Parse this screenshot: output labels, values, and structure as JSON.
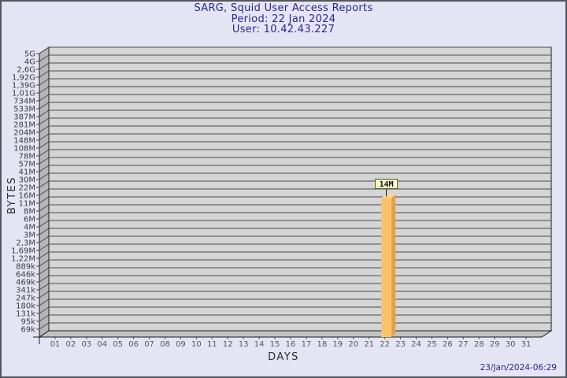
{
  "chart_data": {
    "type": "bar",
    "title": "SARG, Squid User Access Reports",
    "subtitle_period": "Period: 22 Jan 2024",
    "subtitle_user": "User: 10.42.43.227",
    "xlabel": "DAYS",
    "ylabel": "BYTES",
    "footer_timestamp": "23/Jan/2024-06:29",
    "y_axis": {
      "scale": "log",
      "tick_labels": [
        "5G",
        "4G",
        "2,6G",
        "1,92G",
        "1,39G",
        "1,01G",
        "734M",
        "533M",
        "387M",
        "281M",
        "204M",
        "148M",
        "108M",
        "78M",
        "57M",
        "41M",
        "30M",
        "22M",
        "16M",
        "11M",
        "8M",
        "6M",
        "4M",
        "3M",
        "2,3M",
        "1,69M",
        "1,22M",
        "889k",
        "646k",
        "469k",
        "341k",
        "247k",
        "180k",
        "131k",
        "95k",
        "69k"
      ]
    },
    "x_axis": {
      "tick_labels": [
        "01",
        "02",
        "03",
        "04",
        "05",
        "06",
        "07",
        "08",
        "09",
        "10",
        "11",
        "12",
        "13",
        "14",
        "15",
        "16",
        "17",
        "18",
        "19",
        "20",
        "21",
        "22",
        "23",
        "24",
        "25",
        "26",
        "27",
        "28",
        "29",
        "30",
        "31"
      ]
    },
    "bars": [
      {
        "day": "22",
        "label": "14M",
        "value": 14000000
      }
    ],
    "colors": {
      "page_bg": "#E4E4F4",
      "page_border": "#55555C",
      "plot_bg": "#D5D5D5",
      "wall": "#B6B6B6",
      "floor": "#C2C2C2",
      "grid": "#4A4A4A",
      "frame": "#1A1A1A",
      "tick_color": "#3C3C3C",
      "xtick_color": "#585858",
      "title_color": "#29298C",
      "axis_title_color": "#2E2E2E",
      "bar_front": "#FBC369",
      "bar_side": "#E0A14F",
      "bar_top": "#FDD993",
      "bar_label_bg": "#FFFFC9",
      "bar_label_border": "#55552A",
      "bar_label_text": "#111111"
    }
  }
}
